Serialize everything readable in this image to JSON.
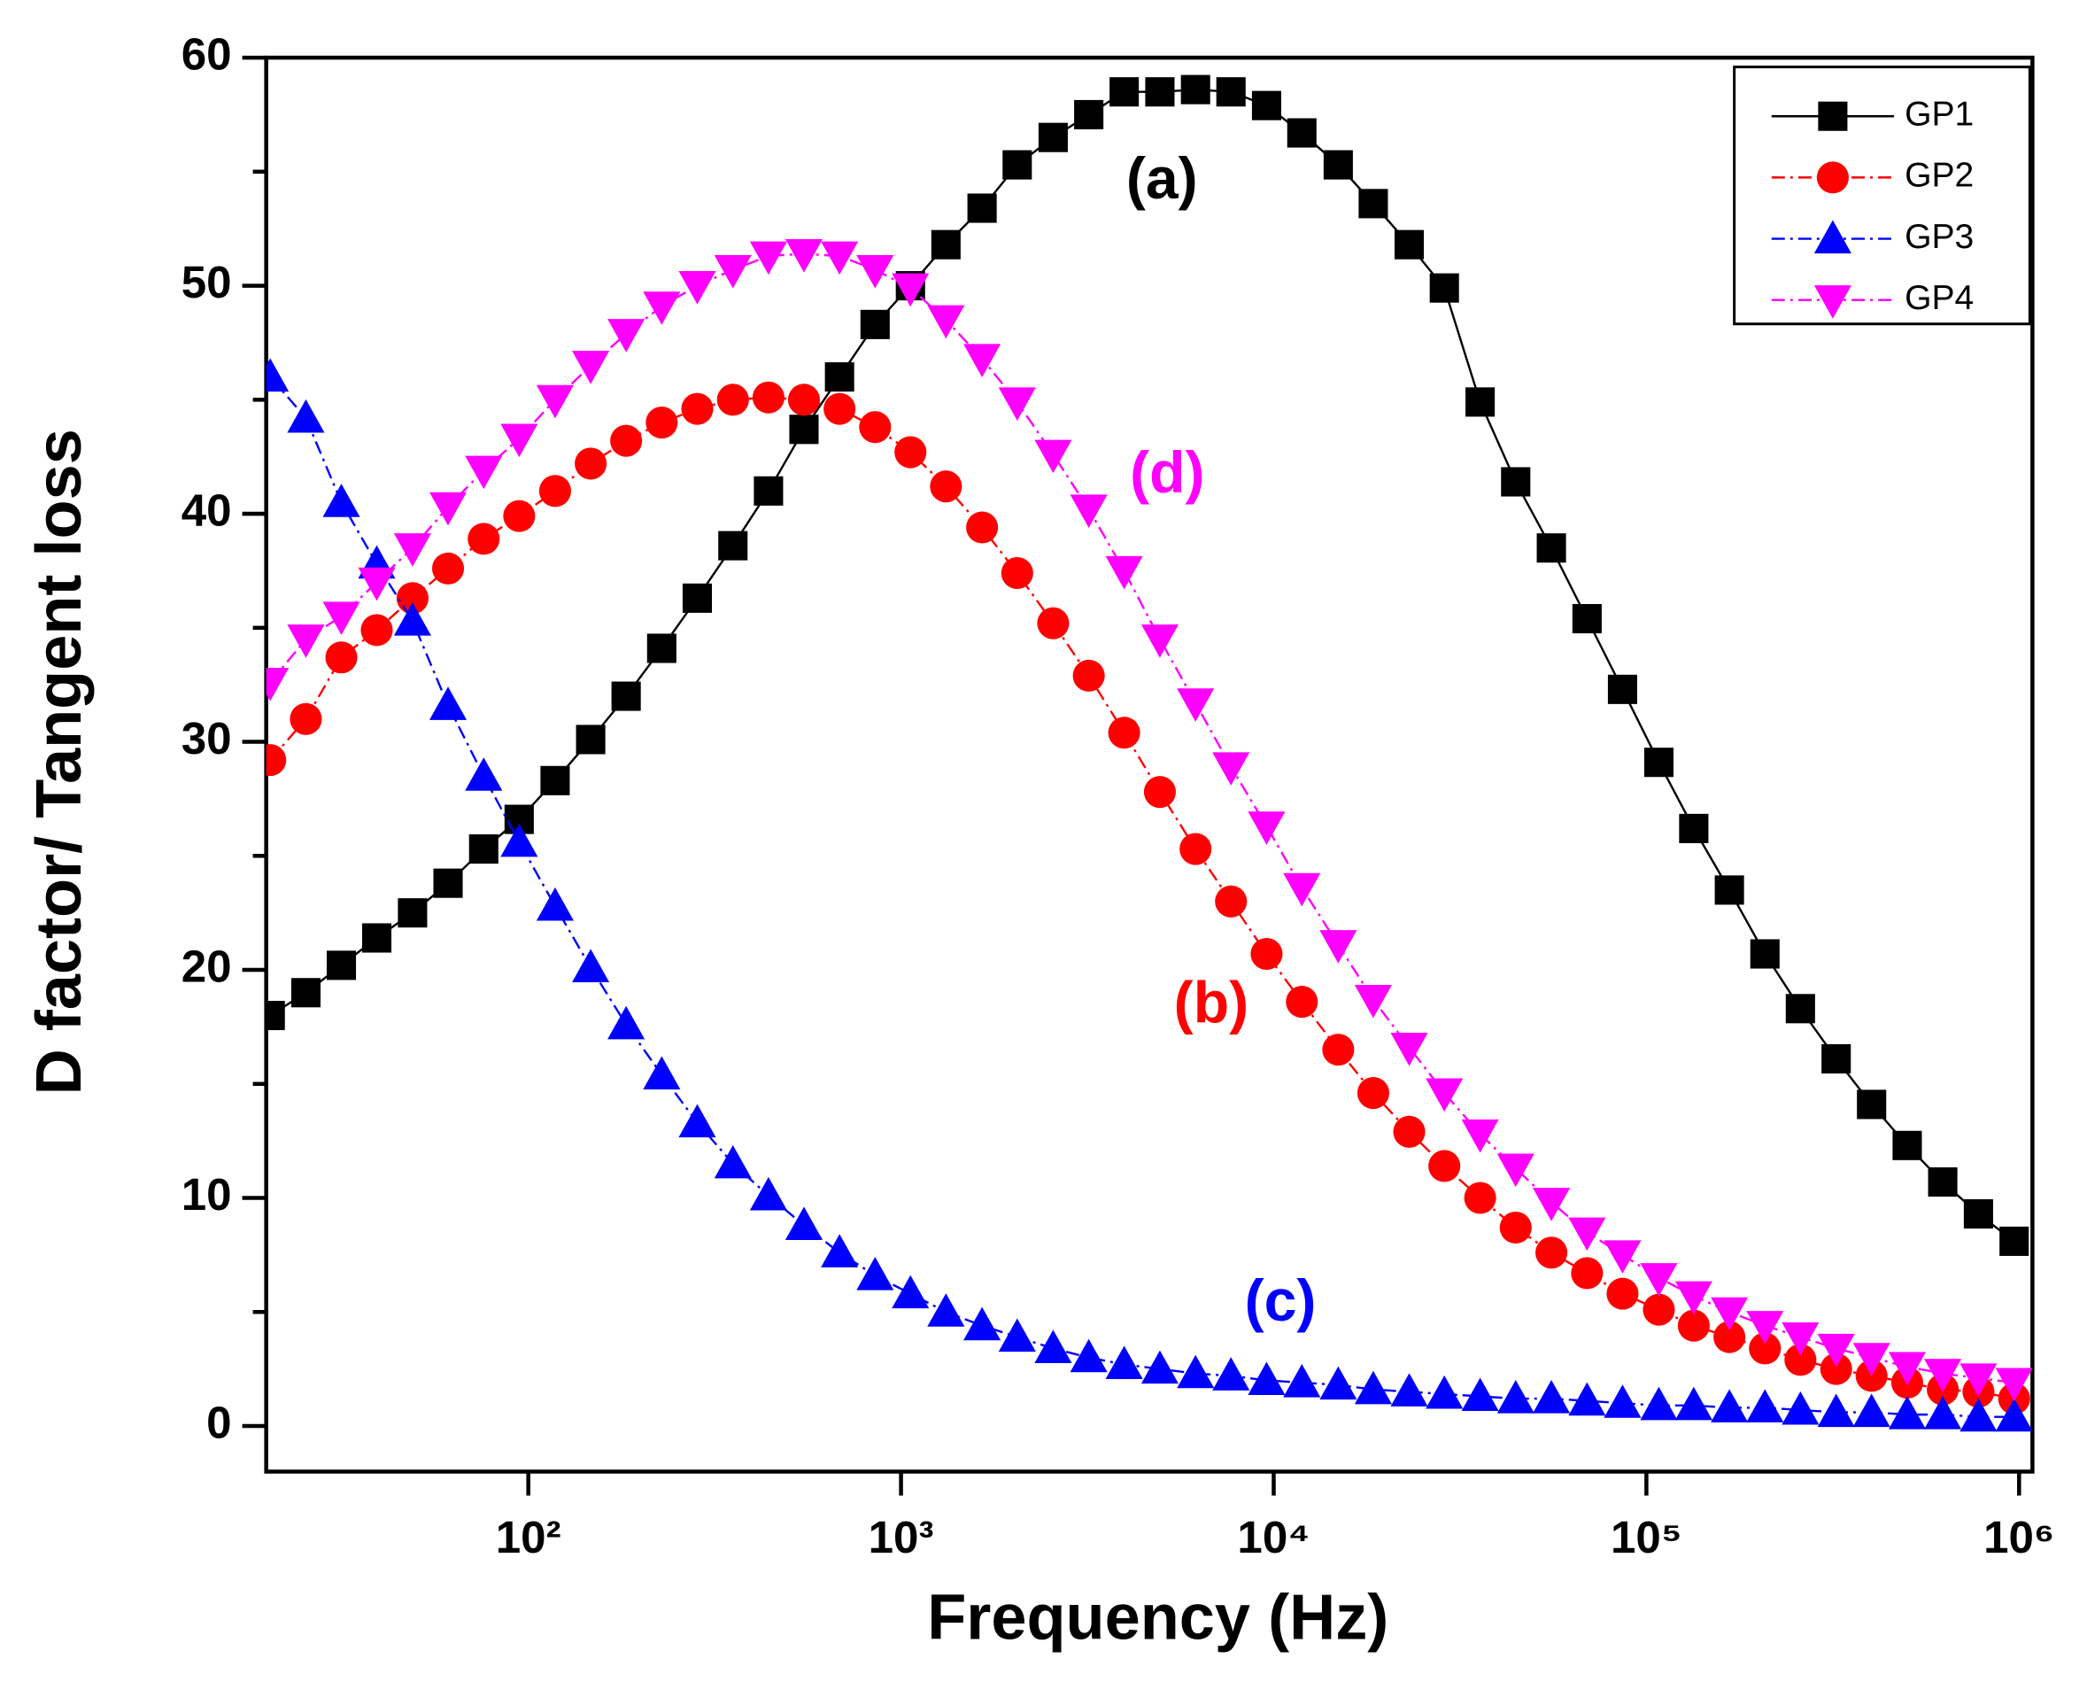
{
  "chart_data": {
    "type": "line",
    "xlabel": "Frequency (Hz)",
    "ylabel": "D factor/ Tangent loss",
    "xscale": "log",
    "legend": "upper right",
    "x": [
      20.3,
      25.3,
      31.5,
      39.2,
      48.9,
      60.9,
      75.9,
      94.5,
      118,
      147,
      183,
      228,
      284,
      354,
      441,
      549,
      684,
      852,
      1060,
      1320,
      1650,
      2050,
      2560,
      3190,
      3970,
      4950,
      6170,
      7680,
      9570,
      11900,
      14900,
      18500,
      23100,
      28700,
      35800,
      44600,
      55600,
      69300,
      86300,
      108000,
      134000,
      167000,
      208000,
      259000,
      323000,
      402000,
      501000,
      624000,
      778000,
      970000
    ],
    "series": [
      {
        "name": "GP1",
        "color": "#000000",
        "marker": "square",
        "dash": false,
        "values": [
          18.0,
          19.0,
          20.2,
          21.4,
          22.5,
          23.8,
          25.3,
          26.6,
          28.3,
          30.1,
          32.0,
          34.1,
          36.3,
          38.6,
          41.0,
          43.7,
          46.0,
          48.3,
          50.0,
          51.8,
          53.4,
          55.3,
          56.5,
          57.5,
          58.5,
          58.5,
          58.6,
          58.5,
          57.9,
          56.7,
          55.3,
          53.6,
          51.8,
          49.9,
          44.9,
          41.4,
          38.5,
          35.4,
          32.3,
          29.1,
          26.2,
          23.5,
          20.7,
          18.3,
          16.1,
          14.1,
          12.3,
          10.7,
          9.3,
          8.1
        ]
      },
      {
        "name": "GP2",
        "color": "#ff0000",
        "marker": "circle",
        "dash": true,
        "values": [
          29.2,
          31.0,
          33.7,
          34.9,
          36.3,
          37.6,
          38.9,
          39.9,
          41.0,
          42.2,
          43.2,
          44.0,
          44.6,
          45.0,
          45.1,
          45.0,
          44.6,
          43.8,
          42.7,
          41.2,
          39.4,
          37.4,
          35.2,
          32.9,
          30.4,
          27.8,
          25.3,
          23.0,
          20.7,
          18.6,
          16.5,
          14.6,
          12.9,
          11.4,
          10.0,
          8.7,
          7.6,
          6.7,
          5.8,
          5.1,
          4.4,
          3.9,
          3.4,
          2.9,
          2.5,
          2.2,
          1.9,
          1.6,
          1.5,
          1.2
        ]
      },
      {
        "name": "GP3",
        "color": "#0000ff",
        "marker": "triangle-up",
        "dash": true,
        "values": [
          46.0,
          44.2,
          40.5,
          37.8,
          35.3,
          31.6,
          28.5,
          25.6,
          22.8,
          20.1,
          17.6,
          15.4,
          13.3,
          11.5,
          10.1,
          8.8,
          7.6,
          6.6,
          5.8,
          5.0,
          4.4,
          3.9,
          3.4,
          3.0,
          2.7,
          2.5,
          2.3,
          2.2,
          2.0,
          1.9,
          1.8,
          1.6,
          1.5,
          1.4,
          1.3,
          1.2,
          1.2,
          1.1,
          1.0,
          0.9,
          0.9,
          0.8,
          0.8,
          0.7,
          0.6,
          0.6,
          0.5,
          0.5,
          0.4,
          0.4
        ]
      },
      {
        "name": "GP4",
        "color": "#ff00ff",
        "marker": "triangle-down",
        "dash": true,
        "values": [
          32.6,
          34.5,
          35.5,
          37.0,
          38.5,
          40.3,
          41.9,
          43.3,
          45.0,
          46.5,
          47.9,
          49.1,
          50.0,
          50.7,
          51.3,
          51.4,
          51.3,
          50.7,
          49.9,
          48.5,
          46.8,
          44.9,
          42.6,
          40.2,
          37.5,
          34.5,
          31.7,
          28.9,
          26.3,
          23.6,
          21.1,
          18.7,
          16.6,
          14.6,
          12.8,
          11.3,
          9.8,
          8.5,
          7.5,
          6.5,
          5.7,
          5.0,
          4.4,
          3.9,
          3.4,
          3.0,
          2.6,
          2.3,
          2.1,
          1.9
        ]
      }
    ],
    "xlim": [
      19.8,
      1086000
    ],
    "xticks": [
      {
        "value": 100,
        "label": "10²"
      },
      {
        "value": 1000,
        "label": "10³"
      },
      {
        "value": 10000,
        "label": "10⁴"
      },
      {
        "value": 100000,
        "label": "10⁵"
      },
      {
        "value": 1000000,
        "label": "10⁶"
      }
    ],
    "ylim": [
      -2,
      60
    ],
    "yticks": [
      0,
      10,
      20,
      30,
      40,
      50,
      60
    ],
    "yticks_minor": [
      5,
      15,
      25,
      35,
      45,
      55
    ],
    "annotations": [
      {
        "text": "(a)",
        "color": "#000000"
      },
      {
        "text": "(b)",
        "color": "#ff0000"
      },
      {
        "text": "(c)",
        "color": "#0000ff"
      },
      {
        "text": "(d)",
        "color": "#ff00ff"
      }
    ]
  }
}
